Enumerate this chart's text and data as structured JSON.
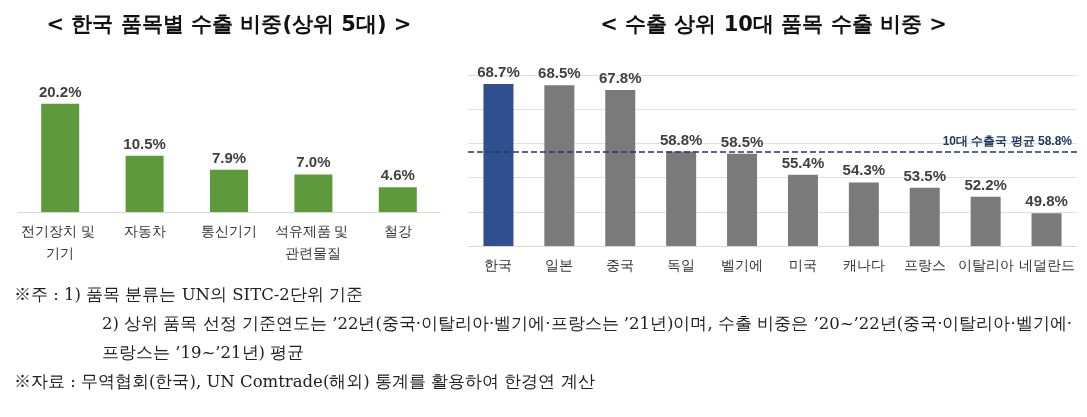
{
  "chart_data": [
    {
      "type": "bar",
      "title": "< 한국 품목별 수출 비중(상위 5대) >",
      "categories": [
        "전기장치 및 기기",
        "자동차",
        "통신기기",
        "석유제품 및 관련물질",
        "철강"
      ],
      "values": [
        20.2,
        10.5,
        7.9,
        7.0,
        4.6
      ],
      "color": "#5c9a3c",
      "value_labels": [
        "20.2%",
        "10.5%",
        "7.9%",
        "7.0%",
        "4.6%"
      ],
      "tick_labels": "x",
      "grid": false
    },
    {
      "type": "bar",
      "title": "< 수출 상위 10대 품목 수출 비중 >",
      "categories": [
        "한국",
        "일본",
        "중국",
        "독일",
        "벨기에",
        "미국",
        "캐나다",
        "프랑스",
        "이탈리아",
        "네덜란드"
      ],
      "values": [
        68.7,
        68.5,
        67.8,
        58.8,
        58.5,
        55.4,
        54.3,
        53.5,
        52.2,
        49.8
      ],
      "colors": [
        "#2f4f8f",
        "#7a7a7a",
        "#7a7a7a",
        "#7a7a7a",
        "#7a7a7a",
        "#7a7a7a",
        "#7a7a7a",
        "#7a7a7a",
        "#7a7a7a",
        "#7a7a7a"
      ],
      "value_labels": [
        "68.7%",
        "68.5%",
        "67.8%",
        "58.8%",
        "58.5%",
        "55.4%",
        "54.3%",
        "53.5%",
        "52.2%",
        "49.8%"
      ],
      "ylim": [
        45,
        70
      ],
      "yticks": [
        {
          "value": 45,
          "label": null
        },
        {
          "value": 50,
          "label": null
        },
        {
          "value": 55,
          "label": null
        },
        {
          "value": 60,
          "label": null
        },
        {
          "value": 65,
          "label": null
        },
        {
          "value": 70,
          "label": null
        }
      ],
      "tick_labels": "x",
      "grid": "y",
      "ref_lines": [
        {
          "axis": "y",
          "value": 58.8,
          "label": "10대 수출국 평균 58.8%",
          "color": "#1f3864",
          "line_style": "dashed"
        }
      ],
      "annotations": [
        "※주 : 1) 품목 분류는 UN의 SITC-2단위 기준",
        "2) 상위 품목 선정 기준연도는 ’22년(중국·이탈리아·벨기에·프랑스는 ’21년)이며, 수출 비중은 ’20~’22년(중국·이탈리아·벨기에·프랑스는 ’19~’21년) 평균",
        "※자료 : 무역협회(한국), UN Comtrade(해외) 통계를 활용하여 한경연 계산"
      ]
    }
  ]
}
